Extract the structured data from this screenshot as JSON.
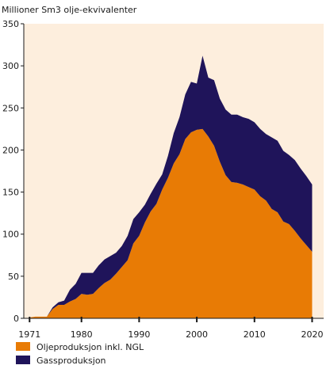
{
  "chart_data": {
    "type": "area",
    "ylabel": "Millioner Sm3 olje-ekvivalenter",
    "stacked": true,
    "xlim": [
      1970,
      2022
    ],
    "ylim": [
      0,
      350
    ],
    "xticks": [
      1971,
      1980,
      1990,
      2000,
      2010,
      2020
    ],
    "yticks": [
      0,
      50,
      100,
      150,
      200,
      250,
      300,
      350
    ],
    "grid": false,
    "legend_position": "bottom-left",
    "x": [
      1971,
      1972,
      1973,
      1974,
      1975,
      1976,
      1977,
      1978,
      1979,
      1980,
      1981,
      1982,
      1983,
      1984,
      1985,
      1986,
      1987,
      1988,
      1989,
      1990,
      1991,
      1992,
      1993,
      1994,
      1995,
      1996,
      1997,
      1998,
      1999,
      2000,
      2001,
      2002,
      2003,
      2004,
      2005,
      2006,
      2007,
      2008,
      2009,
      2010,
      2011,
      2012,
      2013,
      2014,
      2015,
      2016,
      2017,
      2018,
      2019,
      2020
    ],
    "series": [
      {
        "name": "Oljeproduksjon inkl. NGL",
        "color": "#e87b05",
        "values": [
          1,
          2,
          2,
          2,
          11,
          16,
          16,
          20,
          23,
          29,
          28,
          29,
          36,
          42,
          46,
          53,
          61,
          69,
          89,
          98,
          114,
          127,
          136,
          153,
          167,
          184,
          195,
          213,
          221,
          224,
          225,
          216,
          205,
          186,
          170,
          162,
          161,
          159,
          156,
          153,
          145,
          140,
          130,
          126,
          115,
          112,
          104,
          95,
          87,
          79
        ]
      },
      {
        "name": "Gassproduksjon",
        "color": "#1f145a",
        "values": [
          0,
          0,
          0,
          0,
          2,
          3,
          5,
          14,
          18,
          25,
          26,
          25,
          27,
          28,
          28,
          25,
          25,
          29,
          29,
          28,
          21,
          21,
          24,
          18,
          26,
          36,
          44,
          53,
          60,
          55,
          87,
          70,
          78,
          75,
          78,
          80,
          81,
          80,
          81,
          80,
          80,
          79,
          85,
          85,
          84,
          82,
          84,
          83,
          82,
          80
        ]
      }
    ]
  },
  "legend": {
    "items": [
      {
        "label": "Oljeproduksjon inkl. NGL",
        "color": "#e87b05"
      },
      {
        "label": "Gassproduksjon",
        "color": "#1f145a"
      }
    ]
  },
  "colors": {
    "plot_background": "#fdeedd",
    "axis": "#1a1a1a"
  }
}
